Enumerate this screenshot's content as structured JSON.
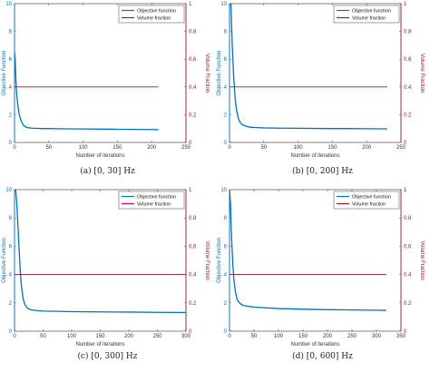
{
  "colors": {
    "objective": "#0072BD",
    "volume": "#A2142F",
    "axis": "#333333"
  },
  "chart_data": [
    {
      "type": "line",
      "caption": "(a) [0, 30] Hz",
      "xlabel": "Number of iterations",
      "ylabel_left": "Objective Function",
      "ylabel_right": "Volume Fraction",
      "xlim": [
        0,
        250
      ],
      "xticks": [
        "0",
        "50",
        "100",
        "150",
        "200",
        "250"
      ],
      "ylim_left": [
        0,
        10
      ],
      "yticks_left": [
        "0",
        "2",
        "4",
        "6",
        "8",
        "10"
      ],
      "ylim_right": [
        0,
        1
      ],
      "yticks_right": [
        "0",
        "0.2",
        "0.4",
        "0.6",
        "0.8",
        "1"
      ],
      "legend_position": "top-right",
      "series": [
        {
          "name": "Objective function",
          "axis": "left",
          "x": [
            0,
            1,
            2,
            3,
            5,
            7,
            10,
            13,
            16,
            20,
            25,
            30,
            40,
            50,
            75,
            100,
            125,
            150,
            175,
            200,
            210
          ],
          "y": [
            6.5,
            5.9,
            4.5,
            3.6,
            2.6,
            2.0,
            1.5,
            1.25,
            1.12,
            1.06,
            1.03,
            1.02,
            1.0,
            1.0,
            0.98,
            0.97,
            0.96,
            0.95,
            0.94,
            0.93,
            0.92
          ]
        },
        {
          "name": "Volume fraction",
          "axis": "right",
          "x": [
            0,
            210
          ],
          "y": [
            0.4,
            0.4
          ]
        }
      ]
    },
    {
      "type": "line",
      "caption": "(b) [0, 200] Hz",
      "xlabel": "Number of iterations",
      "ylabel_left": "Objective Function",
      "ylabel_right": "Volume Fraction",
      "xlim": [
        0,
        250
      ],
      "xticks": [
        "0",
        "50",
        "100",
        "150",
        "200",
        "250"
      ],
      "ylim_left": [
        0,
        10
      ],
      "yticks_left": [
        "0",
        "2",
        "4",
        "6",
        "8",
        "10"
      ],
      "ylim_right": [
        0,
        1
      ],
      "yticks_right": [
        "0",
        "0.2",
        "0.4",
        "0.6",
        "0.8",
        "1"
      ],
      "legend_position": "top-right",
      "series": [
        {
          "name": "Objective function",
          "axis": "left",
          "x": [
            0,
            2,
            4,
            6,
            8,
            10,
            13,
            16,
            20,
            25,
            30,
            40,
            50,
            75,
            100,
            125,
            150,
            175,
            200,
            230
          ],
          "y": [
            10,
            10,
            7.0,
            4.8,
            3.3,
            2.4,
            1.7,
            1.4,
            1.25,
            1.15,
            1.1,
            1.07,
            1.05,
            1.03,
            1.02,
            1.01,
            1.0,
            1.0,
            0.99,
            0.98
          ]
        },
        {
          "name": "Volume fraction",
          "axis": "right",
          "x": [
            0,
            230
          ],
          "y": [
            0.4,
            0.4
          ]
        }
      ]
    },
    {
      "type": "line",
      "caption": "(c) [0, 300] Hz",
      "xlabel": "Number of iterations",
      "ylabel_left": "Objective Function",
      "ylabel_right": "Volume Fraction",
      "xlim": [
        0,
        300
      ],
      "xticks": [
        "0",
        "50",
        "100",
        "150",
        "200",
        "250",
        "300"
      ],
      "ylim_left": [
        0,
        10
      ],
      "yticks_left": [
        "0",
        "2",
        "4",
        "6",
        "8",
        "10"
      ],
      "ylim_right": [
        0,
        1
      ],
      "yticks_right": [
        "0",
        "0.2",
        "0.4",
        "0.6",
        "0.8",
        "1"
      ],
      "legend_position": "top-right",
      "series": [
        {
          "name": "Objective function",
          "axis": "left",
          "x": [
            0,
            2,
            4,
            6,
            8,
            10,
            12,
            15,
            18,
            22,
            26,
            30,
            40,
            50,
            75,
            100,
            150,
            200,
            250,
            300
          ],
          "y": [
            10,
            10,
            9.0,
            7.5,
            5.8,
            4.3,
            3.2,
            2.3,
            1.9,
            1.65,
            1.55,
            1.5,
            1.45,
            1.42,
            1.4,
            1.38,
            1.36,
            1.35,
            1.33,
            1.32
          ]
        },
        {
          "name": "Volume fraction",
          "axis": "right",
          "x": [
            0,
            300
          ],
          "y": [
            0.4,
            0.4
          ]
        }
      ]
    },
    {
      "type": "line",
      "caption": "(d) [0, 600] Hz",
      "xlabel": "Number of iterations",
      "ylabel_left": "Objective Function",
      "ylabel_right": "Volume Fraction",
      "xlim": [
        0,
        350
      ],
      "xticks": [
        "0",
        "50",
        "100",
        "150",
        "200",
        "250",
        "300",
        "350"
      ],
      "ylim_left": [
        0,
        10
      ],
      "yticks_left": [
        "0",
        "2",
        "4",
        "6",
        "8",
        "10"
      ],
      "ylim_right": [
        0,
        1
      ],
      "yticks_right": [
        "0",
        "0.2",
        "0.4",
        "0.6",
        "0.8",
        "1"
      ],
      "legend_position": "top-right",
      "series": [
        {
          "name": "Objective function",
          "axis": "left",
          "x": [
            0,
            1,
            2,
            3,
            5,
            7,
            9,
            12,
            15,
            18,
            22,
            26,
            30,
            40,
            50,
            75,
            100,
            150,
            200,
            250,
            300,
            320
          ],
          "y": [
            10,
            9.5,
            9.0,
            7.8,
            6.0,
            4.6,
            3.6,
            2.8,
            2.3,
            2.1,
            1.95,
            1.85,
            1.8,
            1.75,
            1.7,
            1.65,
            1.6,
            1.55,
            1.52,
            1.5,
            1.48,
            1.47
          ]
        },
        {
          "name": "Volume fraction",
          "axis": "right",
          "x": [
            0,
            320
          ],
          "y": [
            0.4,
            0.4
          ]
        }
      ]
    }
  ]
}
